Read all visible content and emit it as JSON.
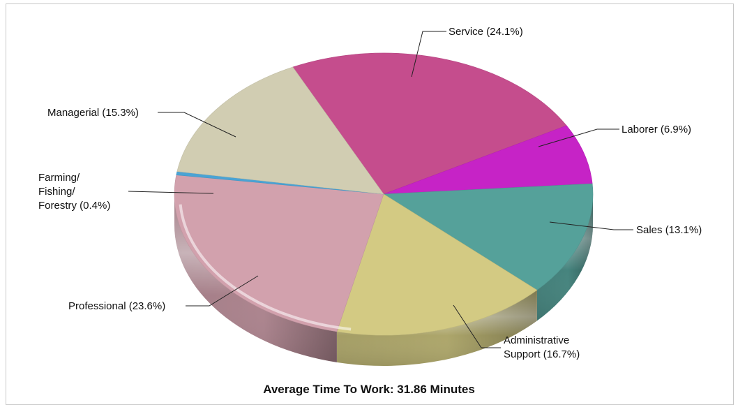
{
  "chart_data": {
    "type": "pie",
    "title": "Average Time To Work: 31.86 Minutes",
    "slices": [
      {
        "name": "Service",
        "value": 24.1,
        "label": "Service (24.1%)",
        "color": "#c54d8d"
      },
      {
        "name": "Laborer",
        "value": 6.9,
        "label": "Laborer (6.9%)",
        "color": "#c623c6"
      },
      {
        "name": "Sales",
        "value": 13.1,
        "label": "Sales (13.1%)",
        "color": "#55a19a"
      },
      {
        "name": "Administrative Support",
        "value": 16.7,
        "label": "Administrative Support (16.7%)",
        "label_lines": [
          "Administrative",
          "Support (16.7%)"
        ],
        "color": "#d3ca83"
      },
      {
        "name": "Professional",
        "value": 23.6,
        "label": "Professional (23.6%)",
        "color": "#d2a1ad"
      },
      {
        "name": "Farming/Fishing/Forestry",
        "value": 0.4,
        "label": "Farming/Fishing/Forestry (0.4%)",
        "label_lines": [
          "Farming/",
          "Fishing/",
          "Forestry (0.4%)"
        ],
        "color": "#4aa3d4"
      },
      {
        "name": "Managerial",
        "value": 15.3,
        "label": "Managerial (15.3%)",
        "color": "#d1cdb2"
      }
    ]
  }
}
